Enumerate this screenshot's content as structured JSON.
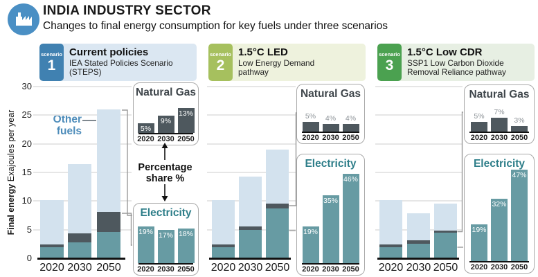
{
  "header": {
    "title": "INDIA INDUSTRY SECTOR",
    "subtitle": "Changes to final energy consumption for key fuels under three scenarios",
    "icon": "factory-icon",
    "icon_color": "#4a8fc4"
  },
  "scenarios": [
    {
      "tag": "scenario",
      "num": "1",
      "title": "Current policies",
      "subtitle": "IEA Stated Policies Scenario (STEPS)",
      "badge_color": "#4081b1",
      "bg_color": "#dbe7f2"
    },
    {
      "tag": "scenario",
      "num": "2",
      "title": "1.5°C LED",
      "subtitle": "Low Energy Demand pathway",
      "badge_color": "#a6c05e",
      "bg_color": "#eef2dd"
    },
    {
      "tag": "scenario",
      "num": "3",
      "title": "1.5°C Low CDR",
      "subtitle": "SSP1 Low Carbon Dioxide Removal Reliance pathway",
      "badge_color": "#4ba150",
      "bg_color": "#e7efe3"
    }
  ],
  "axis": {
    "label_bold": "Final energy",
    "label_rest": " Exajoules per year",
    "ticks": [
      0,
      5,
      10,
      15,
      20,
      25,
      30
    ],
    "ylim": [
      0,
      30
    ]
  },
  "annotations": {
    "other_fuels": "Other fuels",
    "percentage_share": "Percentage share %"
  },
  "colors": {
    "electricity": "#679ba3",
    "natural_gas": "#4e585e",
    "other_fuels": "#d3e2ee",
    "elec_title": "#2e7e89",
    "ng_title": "#3f464b",
    "other_label": "#4d8cba",
    "pct_above": "#8b9196",
    "grid": "#e6e6e6",
    "connector": "#9a9a9a"
  },
  "chart_data": [
    {
      "type": "stacked-bar",
      "scenario": "Current policies",
      "unit": "Exajoules per year",
      "categories": [
        "2020",
        "2030",
        "2050"
      ],
      "series": [
        {
          "name": "Electricity",
          "values": [
            1.9,
            2.8,
            4.6
          ]
        },
        {
          "name": "Natural Gas",
          "values": [
            0.5,
            1.5,
            3.5
          ]
        },
        {
          "name": "Other fuels",
          "values": [
            7.7,
            12.2,
            17.9
          ]
        }
      ],
      "totals": [
        10.1,
        16.5,
        26.0
      ],
      "insets": {
        "natural_gas": {
          "title": "Natural Gas",
          "categories": [
            "2020",
            "2030",
            "2050"
          ],
          "pct": [
            5,
            9,
            13
          ],
          "labels": [
            "5%",
            "9%",
            "13%"
          ],
          "label_pos": "inside"
        },
        "electricity": {
          "title": "Electricity",
          "categories": [
            "2020",
            "2030",
            "2050"
          ],
          "pct": [
            19,
            17,
            18
          ],
          "labels": [
            "19%",
            "17%",
            "18%"
          ],
          "label_pos": "inside"
        }
      }
    },
    {
      "type": "stacked-bar",
      "scenario": "1.5°C LED",
      "unit": "Exajoules per year",
      "categories": [
        "2020",
        "2030",
        "2050"
      ],
      "series": [
        {
          "name": "Electricity",
          "values": [
            1.9,
            5.0,
            8.7
          ]
        },
        {
          "name": "Natural Gas",
          "values": [
            0.5,
            0.6,
            0.8
          ]
        },
        {
          "name": "Other fuels",
          "values": [
            7.7,
            8.7,
            9.5
          ]
        }
      ],
      "totals": [
        10.1,
        14.3,
        19.0
      ],
      "insets": {
        "natural_gas": {
          "title": "Natural Gas",
          "categories": [
            "2020",
            "2030",
            "2050"
          ],
          "pct": [
            5,
            4,
            4
          ],
          "labels": [
            "5%",
            "4%",
            "4%"
          ],
          "label_pos": "above"
        },
        "electricity": {
          "title": "Electricity",
          "categories": [
            "2020",
            "2030",
            "2050"
          ],
          "pct": [
            19,
            35,
            46
          ],
          "labels": [
            "19%",
            "35%",
            "46%"
          ],
          "label_pos": "inside"
        }
      }
    },
    {
      "type": "stacked-bar",
      "scenario": "1.5°C Low CDR",
      "unit": "Exajoules per year",
      "categories": [
        "2020",
        "2030",
        "2050"
      ],
      "series": [
        {
          "name": "Electricity",
          "values": [
            1.9,
            2.5,
            4.5
          ]
        },
        {
          "name": "Natural Gas",
          "values": [
            0.5,
            0.6,
            0.3
          ]
        },
        {
          "name": "Other fuels",
          "values": [
            7.7,
            4.7,
            4.8
          ]
        }
      ],
      "totals": [
        10.1,
        7.8,
        9.6
      ],
      "insets": {
        "natural_gas": {
          "title": "Natural Gas",
          "categories": [
            "2020",
            "2030",
            "2050"
          ],
          "pct": [
            5,
            7,
            3
          ],
          "labels": [
            "5%",
            "7%",
            "3%"
          ],
          "label_pos": "above"
        },
        "electricity": {
          "title": "Electricity",
          "categories": [
            "2020",
            "2030",
            "2050"
          ],
          "pct": [
            19,
            32,
            47
          ],
          "labels": [
            "19%",
            "32%",
            "47%"
          ],
          "label_pos": "inside"
        }
      }
    }
  ]
}
